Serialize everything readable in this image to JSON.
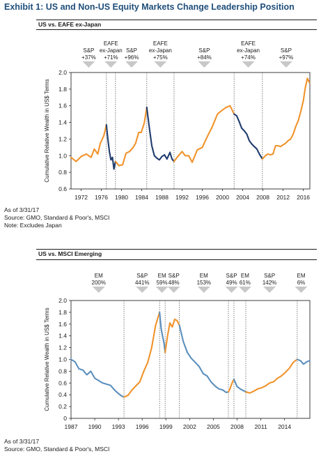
{
  "title": "Exhibit 1: US and Non-US Equity Markets Change Leadership Position",
  "colors": {
    "title": "#1f4e79",
    "us_lead": "#f0932b",
    "nonus_lead": "#1f3c6e",
    "em_lead": "#5b8fbe",
    "arrow": "#c8c8c8",
    "frame": "#2a2a2a"
  },
  "chart_data": [
    {
      "type": "line",
      "panel_title": "US vs. EAFE ex-Japan",
      "ylabel": "Cumulative Relative Wealth in US$ Terms",
      "xlabel": "",
      "xlim": [
        1970,
        2017.3
      ],
      "ylim": [
        0.6,
        2.0
      ],
      "x_ticks": [
        1972,
        1976,
        1980,
        1984,
        1988,
        1992,
        1996,
        2000,
        2004,
        2008,
        2012,
        2016
      ],
      "y_ticks": [
        0.6,
        0.8,
        1.0,
        1.2,
        1.4,
        1.6,
        1.8,
        2.0
      ],
      "y_tick_labels": [
        "0.6",
        "0.8",
        "1.0",
        "1.2",
        "1.4",
        "1.6",
        "1.8",
        "2.0"
      ],
      "regime_boundaries": [
        1977,
        1978.8,
        1985,
        1990.4,
        2002.3,
        2007.9
      ],
      "annotations": [
        {
          "lines": [
            "S&P",
            "+37%"
          ],
          "x": 1973.5
        },
        {
          "lines": [
            "EAFE",
            "ex-Japan",
            "+71%"
          ],
          "x": 1977.9
        },
        {
          "lines": [
            "S&P",
            "+96%"
          ],
          "x": 1982
        },
        {
          "lines": [
            "EAFE",
            "ex-Japan",
            "+75%"
          ],
          "x": 1987.7
        },
        {
          "lines": [
            "S&P",
            "+84%"
          ],
          "x": 1996.4
        },
        {
          "lines": [
            "EAFE",
            "ex-Japan",
            "+74%"
          ],
          "x": 2005.1
        },
        {
          "lines": [
            "S&P",
            "+97%"
          ],
          "x": 2012.6
        }
      ],
      "series": [
        {
          "leader": "US",
          "color": "#f0932b",
          "x": [
            1970,
            1971,
            1972,
            1973,
            1974,
            1974.6,
            1975.3,
            1975.8,
            1976.5,
            1977
          ],
          "y": [
            0.98,
            0.93,
            0.99,
            1.02,
            0.98,
            1.08,
            1.02,
            1.15,
            1.24,
            1.37
          ]
        },
        {
          "leader": "Non-US",
          "color": "#1f3c6e",
          "x": [
            1977,
            1977.3,
            1977.6,
            1977.9,
            1978.2,
            1978.5,
            1978.8
          ],
          "y": [
            1.37,
            1.2,
            1.05,
            0.95,
            0.98,
            0.84,
            0.93
          ]
        },
        {
          "leader": "US",
          "color": "#f0932b",
          "x": [
            1978.8,
            1979.5,
            1980.2,
            1980.9,
            1981.6,
            1982.3,
            1982.8,
            1983.4,
            1983.9,
            1984.5,
            1985
          ],
          "y": [
            0.93,
            0.88,
            0.89,
            1.03,
            1.05,
            1.1,
            1.15,
            1.28,
            1.28,
            1.39,
            1.58
          ]
        },
        {
          "leader": "Non-US",
          "color": "#1f3c6e",
          "x": [
            1985,
            1985.5,
            1986,
            1986.5,
            1987,
            1987.5,
            1988,
            1988.5,
            1989,
            1989.6,
            1990,
            1990.4
          ],
          "y": [
            1.58,
            1.34,
            1.12,
            1.0,
            0.97,
            0.95,
            0.99,
            1.01,
            0.96,
            1.04,
            0.96,
            0.93
          ]
        },
        {
          "leader": "US",
          "color": "#f0932b",
          "x": [
            1990.4,
            1991,
            1992,
            1992.6,
            1993.3,
            1994,
            1995,
            1996,
            1997,
            1998,
            1999,
            2000,
            2000.7,
            2001.5,
            2002.3
          ],
          "y": [
            0.93,
            0.98,
            1.05,
            1.0,
            1.0,
            0.92,
            1.07,
            1.1,
            1.23,
            1.35,
            1.5,
            1.55,
            1.58,
            1.6,
            1.5
          ]
        },
        {
          "leader": "Non-US",
          "color": "#1f3c6e",
          "x": [
            2002.3,
            2002.8,
            2003.3,
            2003.8,
            2004.3,
            2004.8,
            2005.3,
            2005.8,
            2006.3,
            2006.8,
            2007.3,
            2007.9
          ],
          "y": [
            1.5,
            1.48,
            1.41,
            1.33,
            1.3,
            1.26,
            1.18,
            1.14,
            1.11,
            1.08,
            1.02,
            0.96
          ]
        },
        {
          "leader": "US",
          "color": "#f0932b",
          "x": [
            2007.9,
            2008.5,
            2009,
            2009.5,
            2010,
            2010.5,
            2011,
            2011.5,
            2012,
            2012.5,
            2013,
            2013.5,
            2014,
            2014.5,
            2015,
            2015.5,
            2016,
            2016.4,
            2016.8,
            2017.2
          ],
          "y": [
            0.96,
            1.0,
            1.02,
            1.01,
            1.02,
            1.12,
            1.12,
            1.11,
            1.13,
            1.15,
            1.18,
            1.2,
            1.26,
            1.35,
            1.42,
            1.53,
            1.66,
            1.82,
            1.93,
            1.88
          ]
        }
      ]
    },
    {
      "type": "line",
      "panel_title": "US vs. MSCI Emerging",
      "ylabel": "Cumulative Relative Wealth in US$ Terms",
      "xlabel": "",
      "xlim": [
        1987,
        2017.2
      ],
      "ylim": [
        0.0,
        2.0
      ],
      "x_ticks": [
        1987,
        1990,
        1993,
        1996,
        1999,
        2002,
        2005,
        2008,
        2011,
        2014
      ],
      "y_ticks": [
        0.0,
        0.2,
        0.4,
        0.6,
        0.8,
        1.0,
        1.2,
        1.4,
        1.6,
        1.8,
        2.0
      ],
      "y_tick_labels": [
        "0",
        "0.2",
        "0.4",
        "0.6",
        "0.8",
        "1.0",
        "1.2",
        "1.4",
        "1.6",
        "1.8",
        "2.0"
      ],
      "regime_boundaries": [
        1993.7,
        1998.2,
        1998.9,
        2000.7,
        2006.9,
        2007.6,
        2009.1,
        2015.6
      ],
      "annotations": [
        {
          "lines": [
            "EM",
            "200%"
          ],
          "x": 1990.5
        },
        {
          "lines": [
            "S&P",
            "441%"
          ],
          "x": 1996
        },
        {
          "lines": [
            "EM",
            "59%"
          ],
          "x": 1998.5
        },
        {
          "lines": [
            "S&P",
            "48%"
          ],
          "x": 2000
        },
        {
          "lines": [
            "EM",
            "153%"
          ],
          "x": 2003.8
        },
        {
          "lines": [
            "S&P",
            "49%"
          ],
          "x": 2007.3
        },
        {
          "lines": [
            "EM",
            "61%"
          ],
          "x": 2009
        },
        {
          "lines": [
            "S&P",
            "142%"
          ],
          "x": 2012.1
        },
        {
          "lines": [
            "EM",
            "6%"
          ],
          "x": 2016.1
        }
      ],
      "series": [
        {
          "leader": "EM",
          "color": "#5b8fbe",
          "x": [
            1987,
            1987.5,
            1988,
            1988.5,
            1989,
            1989.5,
            1990,
            1990.5,
            1991,
            1991.5,
            1992,
            1992.5,
            1993,
            1993.4,
            1993.7
          ],
          "y": [
            1.0,
            0.96,
            0.84,
            0.82,
            0.74,
            0.8,
            0.68,
            0.64,
            0.6,
            0.58,
            0.56,
            0.48,
            0.42,
            0.38,
            0.36
          ]
        },
        {
          "leader": "US",
          "color": "#f0932b",
          "x": [
            1993.7,
            1994.2,
            1994.7,
            1995.2,
            1995.7,
            1996.2,
            1996.7,
            1997.2,
            1997.7,
            1998.2
          ],
          "y": [
            0.36,
            0.39,
            0.48,
            0.55,
            0.62,
            0.8,
            0.95,
            1.2,
            1.58,
            1.8
          ]
        },
        {
          "leader": "EM",
          "color": "#5b8fbe",
          "x": [
            1998.2,
            1998.4,
            1998.6,
            1998.75,
            1998.9
          ],
          "y": [
            1.8,
            1.52,
            1.38,
            1.28,
            1.12
          ]
        },
        {
          "leader": "US",
          "color": "#f0932b",
          "x": [
            1998.9,
            1999.2,
            1999.5,
            1999.8,
            2000.1,
            2000.4,
            2000.7
          ],
          "y": [
            1.12,
            1.4,
            1.62,
            1.55,
            1.68,
            1.66,
            1.58
          ]
        },
        {
          "leader": "EM",
          "color": "#5b8fbe",
          "x": [
            2000.7,
            2001.2,
            2001.7,
            2002.2,
            2002.7,
            2003.2,
            2003.7,
            2004.2,
            2004.7,
            2005.2,
            2005.7,
            2006.2,
            2006.6,
            2006.9
          ],
          "y": [
            1.58,
            1.3,
            1.12,
            1.02,
            0.95,
            0.88,
            0.76,
            0.72,
            0.62,
            0.55,
            0.5,
            0.48,
            0.44,
            0.45
          ]
        },
        {
          "leader": "US",
          "color": "#f0932b",
          "x": [
            2006.9,
            2007.1,
            2007.3,
            2007.5,
            2007.6
          ],
          "y": [
            0.45,
            0.5,
            0.58,
            0.64,
            0.66
          ]
        },
        {
          "leader": "EM",
          "color": "#5b8fbe",
          "x": [
            2007.6,
            2008,
            2008.4,
            2008.8,
            2009.1
          ],
          "y": [
            0.66,
            0.54,
            0.5,
            0.47,
            0.45
          ]
        },
        {
          "leader": "US",
          "color": "#f0932b",
          "x": [
            2009.1,
            2009.6,
            2010.1,
            2010.6,
            2011.1,
            2011.6,
            2012.1,
            2012.6,
            2013.1,
            2013.6,
            2014.1,
            2014.6,
            2015.1,
            2015.6
          ],
          "y": [
            0.45,
            0.43,
            0.46,
            0.5,
            0.52,
            0.55,
            0.6,
            0.62,
            0.68,
            0.72,
            0.78,
            0.85,
            0.95,
            1.0
          ]
        },
        {
          "leader": "EM",
          "color": "#5b8fbe",
          "x": [
            2015.6,
            2016,
            2016.4,
            2016.8,
            2017.2
          ],
          "y": [
            1.0,
            0.98,
            0.92,
            0.96,
            0.98
          ]
        }
      ]
    }
  ],
  "notes_top": [
    "As of 3/31/17",
    "Source: GMO, Standard & Poor's, MSCI",
    "Note: Excludes Japan"
  ],
  "notes_bottom": [
    "As of 3/31/17",
    "Source: GMO, Standard & Poor's, MSCI"
  ]
}
